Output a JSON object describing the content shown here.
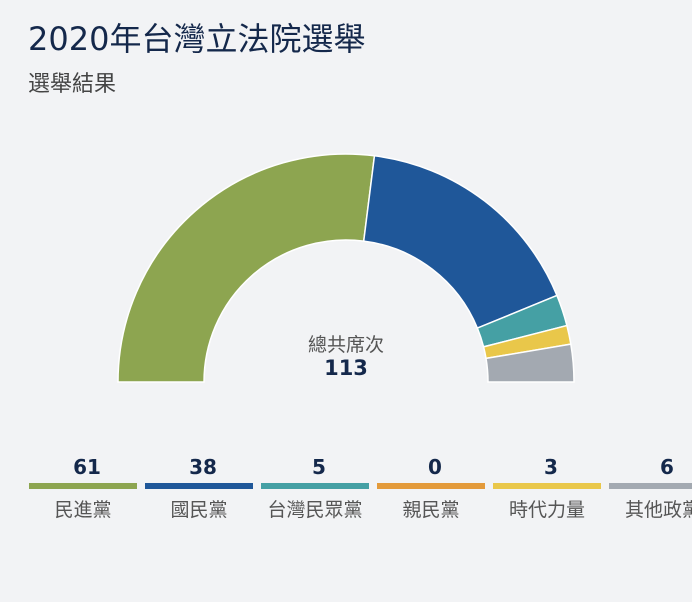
{
  "title": "2020年台灣立法院選舉",
  "subtitle": "選舉結果",
  "center": {
    "label": "總共席次",
    "value": "113"
  },
  "chart_data": {
    "type": "pie",
    "style": "semi-donut",
    "title": "2020年台灣立法院選舉",
    "subtitle": "選舉結果",
    "total": 113,
    "categories": [
      "民進黨",
      "國民黨",
      "台灣民眾黨",
      "親民黨",
      "時代力量",
      "其他政黨"
    ],
    "values": [
      61,
      38,
      5,
      0,
      3,
      6
    ],
    "colors": [
      "#8da550",
      "#1f5799",
      "#45a0a4",
      "#e39a3b",
      "#e9c74a",
      "#a3a9b1"
    ],
    "legend": "bottom"
  }
}
